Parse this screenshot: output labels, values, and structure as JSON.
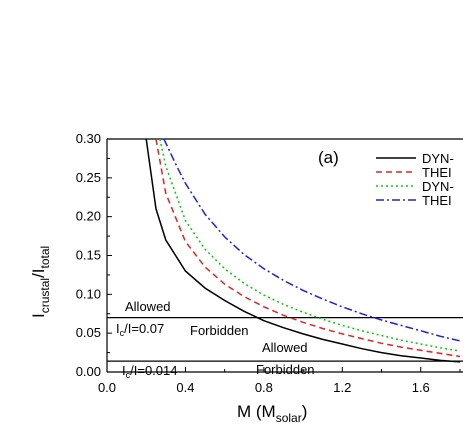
{
  "chart_data": {
    "type": "line",
    "panel_label": "(a)",
    "xlabel": {
      "main": "M (M",
      "sub": "solar",
      "close": ")"
    },
    "ylabel": {
      "main1": "I",
      "sub1": "crustal",
      "mid": "/I",
      "sub2": "total"
    },
    "xlim": [
      0.0,
      1.8
    ],
    "ylim": [
      0.0,
      0.3
    ],
    "xticks": [
      0.0,
      0.4,
      0.8,
      1.2,
      1.6
    ],
    "xtick_labels": [
      "0.0",
      "0.4",
      "0.8",
      "1.2",
      "1.6"
    ],
    "yticks": [
      0.0,
      0.05,
      0.1,
      0.15,
      0.2,
      0.25,
      0.3
    ],
    "ytick_labels": [
      "0.00",
      "0.05",
      "0.10",
      "0.15",
      "0.20",
      "0.25",
      "0.30"
    ],
    "series": [
      {
        "name": "DYN-",
        "color": "#000000",
        "dash": "",
        "x": [
          0.2,
          0.25,
          0.3,
          0.4,
          0.5,
          0.6,
          0.7,
          0.8,
          0.9,
          1.0,
          1.1,
          1.2,
          1.3,
          1.4,
          1.5,
          1.6,
          1.7,
          1.8
        ],
        "y": [
          0.3,
          0.21,
          0.17,
          0.13,
          0.108,
          0.092,
          0.078,
          0.066,
          0.057,
          0.049,
          0.042,
          0.036,
          0.03,
          0.025,
          0.021,
          0.018,
          0.015,
          0.013
        ]
      },
      {
        "name": "THEI",
        "color": "#e8201f",
        "dash": "6,4",
        "x": [
          0.25,
          0.3,
          0.4,
          0.5,
          0.6,
          0.7,
          0.8,
          0.9,
          1.0,
          1.1,
          1.2,
          1.3,
          1.4,
          1.5,
          1.6,
          1.7,
          1.8
        ],
        "y": [
          0.3,
          0.23,
          0.168,
          0.135,
          0.113,
          0.097,
          0.084,
          0.073,
          0.064,
          0.056,
          0.049,
          0.043,
          0.037,
          0.032,
          0.028,
          0.024,
          0.02
        ]
      },
      {
        "name": "DYN-",
        "color": "#00d000",
        "dash": "2,3",
        "x": [
          0.27,
          0.3,
          0.4,
          0.5,
          0.6,
          0.7,
          0.8,
          0.9,
          1.0,
          1.1,
          1.2,
          1.3,
          1.4,
          1.5,
          1.6,
          1.7,
          1.8
        ],
        "y": [
          0.3,
          0.265,
          0.195,
          0.158,
          0.133,
          0.114,
          0.099,
          0.087,
          0.077,
          0.068,
          0.06,
          0.053,
          0.047,
          0.041,
          0.036,
          0.031,
          0.027
        ]
      },
      {
        "name": "THEI",
        "color": "#1f1fe0",
        "dash": "8,3,2,3",
        "x": [
          0.29,
          0.35,
          0.4,
          0.5,
          0.6,
          0.7,
          0.8,
          0.9,
          1.0,
          1.1,
          1.2,
          1.3,
          1.4,
          1.5,
          1.6,
          1.7,
          1.8
        ],
        "y": [
          0.3,
          0.268,
          0.243,
          0.203,
          0.174,
          0.151,
          0.133,
          0.118,
          0.105,
          0.094,
          0.084,
          0.075,
          0.067,
          0.06,
          0.053,
          0.046,
          0.04
        ]
      }
    ],
    "hlines": [
      0.07,
      0.014
    ],
    "annotations": {
      "allowed_top": "Allowed",
      "ratio_top_main": "I",
      "ratio_top_sub": "c",
      "ratio_top_rest": "/I=0.07",
      "forbidden_top": "Forbidden",
      "allowed_bottom": "Allowed",
      "ratio_bottom_main": "I",
      "ratio_bottom_sub": "c",
      "ratio_bottom_rest": "/I=0.014",
      "forbidden_bottom": "Forbidden"
    }
  }
}
